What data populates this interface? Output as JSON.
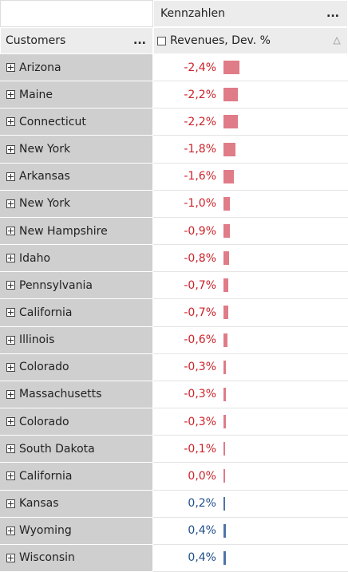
{
  "header": {
    "measure_group": "Kennzahlen",
    "measure_menu": "...",
    "dimension": "Customers",
    "dimension_menu": "...",
    "measure": "Revenues, Dev. %"
  },
  "rows": [
    {
      "label": "Arizona",
      "value": -2.4,
      "value_label": "-2,4%"
    },
    {
      "label": "Maine",
      "value": -2.2,
      "value_label": "-2,2%"
    },
    {
      "label": "Connecticut",
      "value": -2.2,
      "value_label": "-2,2%"
    },
    {
      "label": "New York",
      "value": -1.8,
      "value_label": "-1,8%"
    },
    {
      "label": "Arkansas",
      "value": -1.6,
      "value_label": "-1,6%"
    },
    {
      "label": "New York",
      "value": -1.0,
      "value_label": "-1,0%"
    },
    {
      "label": "New Hampshire",
      "value": -0.9,
      "value_label": "-0,9%"
    },
    {
      "label": "Idaho",
      "value": -0.8,
      "value_label": "-0,8%"
    },
    {
      "label": "Pennsylvania",
      "value": -0.7,
      "value_label": "-0,7%"
    },
    {
      "label": "California",
      "value": -0.7,
      "value_label": "-0,7%"
    },
    {
      "label": "Illinois",
      "value": -0.6,
      "value_label": "-0,6%"
    },
    {
      "label": "Colorado",
      "value": -0.3,
      "value_label": "-0,3%"
    },
    {
      "label": "Massachusetts",
      "value": -0.3,
      "value_label": "-0,3%"
    },
    {
      "label": "Colorado",
      "value": -0.3,
      "value_label": "-0,3%"
    },
    {
      "label": "South Dakota",
      "value": -0.1,
      "value_label": "-0,1%"
    },
    {
      "label": "California",
      "value": 0.0,
      "value_label": "0,0%"
    },
    {
      "label": "Kansas",
      "value": 0.2,
      "value_label": "0,2%"
    },
    {
      "label": "Wyoming",
      "value": 0.4,
      "value_label": "0,4%"
    },
    {
      "label": "Wisconsin",
      "value": 0.4,
      "value_label": "0,4%"
    }
  ]
}
